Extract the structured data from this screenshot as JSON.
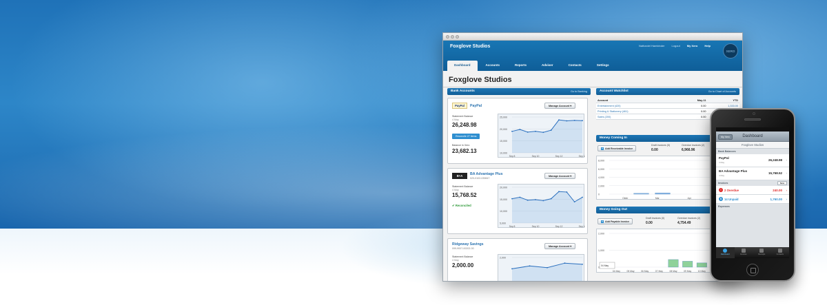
{
  "window": {
    "org_name": "Foxglove Studios",
    "top_links": {
      "user": "Nathaniel Hambinder",
      "logout": "Logout",
      "my_xero": "My Xero",
      "help": "Help"
    },
    "logo_text": "XERO",
    "tabs": [
      {
        "label": "Dashboard",
        "active": true
      },
      {
        "label": "Accounts",
        "active": false
      },
      {
        "label": "Reports",
        "active": false
      },
      {
        "label": "Adviser",
        "active": false
      },
      {
        "label": "Contacts",
        "active": false
      },
      {
        "label": "Settings",
        "active": false
      }
    ],
    "page_title": "Foxglove Studios"
  },
  "bank_accounts": {
    "header": "Bank Accounts",
    "link": "Go to Banking",
    "manage_label": "Manage Account",
    "accounts": [
      {
        "logo": "PayPal",
        "name": "PayPal",
        "number": "",
        "statement_label": "Statement Balance",
        "statement_sub": "4 May",
        "statement_balance": "26,248.98",
        "action_label": "Reconcile 27 items",
        "xero_label": "Balance in Xero",
        "xero_balance": "23,682.13",
        "y_ticks": [
          "25,000",
          "20,000",
          "15,000",
          "10,000"
        ],
        "x_ticks": [
          "Sep 8",
          "Sep 10",
          "Sep 12",
          "Sep 14"
        ],
        "line": [
          19000,
          19800,
          18700,
          19000,
          18600,
          19500,
          23800,
          23400,
          23600,
          23500
        ]
      },
      {
        "logo": "B+A",
        "name": "BA Advantage Plus",
        "number": "020-0102-039847",
        "statement_label": "Statement Balance",
        "statement_sub": "4 May",
        "statement_balance": "15,768.52",
        "status_label": "Reconciled",
        "y_ticks": [
          "20,000",
          "15,000",
          "10,000",
          "5,000"
        ],
        "x_ticks": [
          "Sep 8",
          "Sep 10",
          "Sep 12",
          "Sep 14"
        ],
        "line": [
          15200,
          15800,
          14600,
          14800,
          14400,
          15200,
          18200,
          18000,
          13900,
          15800
        ]
      },
      {
        "name": "Ridgeway Savings",
        "number": "099-9007-00202-00",
        "statement_label": "Statement Balance",
        "statement_sub": "4 May",
        "statement_balance": "2,000.00",
        "y_ticks": [
          "2,000",
          "1,500"
        ],
        "line": [
          1800,
          1850,
          1820,
          1900,
          1880
        ]
      }
    ]
  },
  "watchlist": {
    "header": "Account Watchlist",
    "link": "Go to Chart of Accounts",
    "columns": [
      "Account",
      "May-11",
      "YTD"
    ],
    "rows": [
      {
        "account": "Entertainment (420)",
        "month": "0.00",
        "ytd": "1,333.00"
      },
      {
        "account": "Printing & Stationery (461)",
        "month": "0.00",
        "ytd": "0.00"
      },
      {
        "account": "Sales (200)",
        "month": "0.00",
        "ytd": "1,467.30"
      }
    ]
  },
  "money_in": {
    "header": "Money Coming In",
    "link": "Go to Accounts",
    "button": "Add Receivable Invoice",
    "draft_label": "Draft invoices (5)",
    "draft_value": "0.00",
    "overdue_label": "Overdue invoices (2)",
    "overdue_value": "6,966.96",
    "y_ticks": [
      "8,000",
      "6,000",
      "4,000",
      "2,000",
      "0"
    ],
    "x_ticks": [
      "Older",
      "Mar",
      "Apr",
      "May"
    ],
    "bars": [
      0,
      200,
      300,
      0,
      0,
      5000
    ]
  },
  "money_out": {
    "header": "Money Going Out",
    "link": "Go to Accounts",
    "button": "Add Payable Invoice",
    "draft_label": "Draft invoices (0)",
    "draft_value": "0.00",
    "overdue_label": "Overdue invoices (2)",
    "overdue_value": "4,754.49",
    "legend": "Awaiting Pa",
    "y_ticks": [
      "2,000",
      "1,000",
      "0"
    ],
    "x_ticks": [
      "04 May",
      "05 May",
      "06 May",
      "07 May",
      "08 May",
      "09 May",
      "10 May",
      "11 May",
      "12 May"
    ],
    "bars": [
      0,
      0,
      0,
      0,
      450,
      350,
      250,
      200,
      0
    ],
    "tooltip_date": "04 May"
  },
  "phone": {
    "back_label": "My Xero",
    "title": "Dashboard",
    "org": "Foxglove Studios",
    "bank_section": "Bank Balances",
    "banks": [
      {
        "name": "PayPal",
        "sub": "4 May",
        "value": "26,248.98"
      },
      {
        "name": "BA Advantage Plus",
        "sub": "4 May",
        "value": "15,768.52"
      }
    ],
    "invoices_section": "Invoices",
    "new_label": "New",
    "overdue": {
      "label": "2 Overdue",
      "value": "240.00",
      "color": "#e02a2a"
    },
    "unpaid": {
      "label": "14 Unpaid",
      "value": "1,760.00",
      "color": "#2f8fd0"
    },
    "expenses_section": "Expenses",
    "tabbar": [
      "Dashboard",
      "Invoices",
      "Receipts",
      "Contacts"
    ]
  },
  "colors": {
    "brand_blue": "#1876b4",
    "link_blue": "#2b73b0",
    "success_green": "#2f9a3a",
    "chart_line": "#2a6fbe",
    "bar_blue": "#8bb8e6",
    "bar_green": "#8fd29a"
  }
}
